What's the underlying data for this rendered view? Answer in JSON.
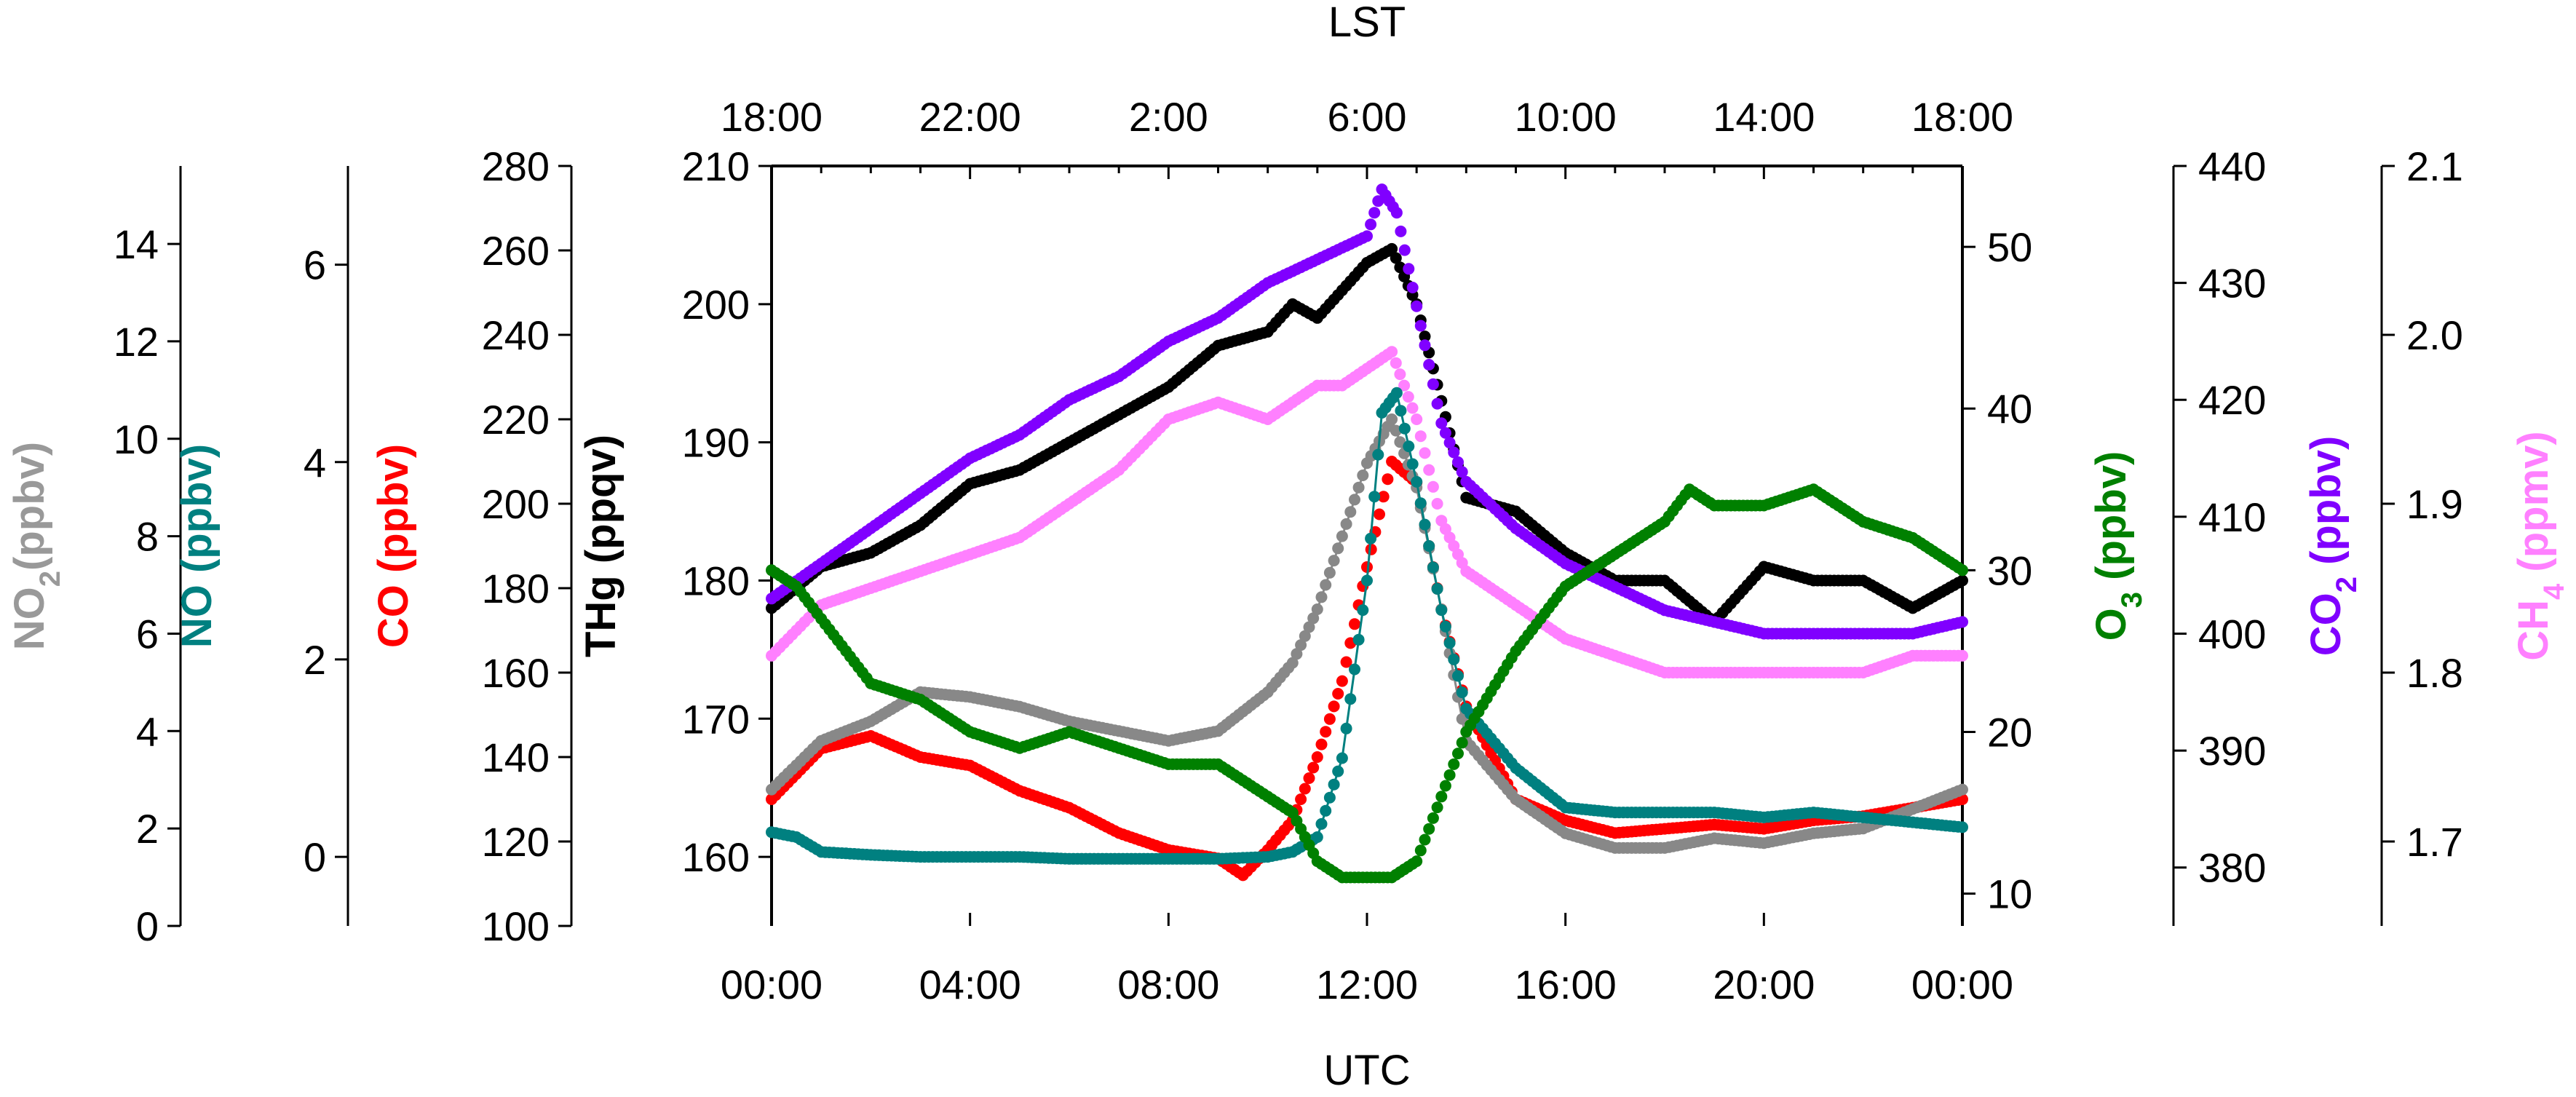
{
  "chart_data": {
    "type": "scatter",
    "title": "",
    "top_axis": {
      "label": "LST",
      "tick_labels": [
        "18:00",
        "22:00",
        "2:00",
        "6:00",
        "10:00",
        "14:00",
        "18:00"
      ]
    },
    "x_axis": {
      "label": "UTC",
      "tick_labels": [
        "00:00",
        "04:00",
        "08:00",
        "12:00",
        "16:00",
        "20:00",
        "00:00"
      ],
      "range_hours": [
        0,
        24
      ]
    },
    "axes": [
      {
        "id": "no2",
        "label_main": "NO",
        "label_sub": "2",
        "label_unit": "(ppbv)",
        "color": "#999999",
        "ylim": [
          0,
          15.6
        ],
        "ticks": [
          0,
          2,
          4,
          6,
          8,
          10,
          12,
          14
        ],
        "side": "left"
      },
      {
        "id": "no",
        "label_main": "NO (ppbv)",
        "label_sub": "",
        "label_unit": "",
        "color": "#008080",
        "ylim": [
          -0.7,
          7
        ],
        "ticks": [
          0,
          2,
          4,
          6
        ],
        "side": "left"
      },
      {
        "id": "co",
        "label_main": "CO (ppbv)",
        "label_sub": "",
        "label_unit": "",
        "color": "#ff0000",
        "ylim": [
          100,
          280
        ],
        "ticks": [
          100,
          120,
          140,
          160,
          180,
          200,
          220,
          240,
          260,
          280
        ],
        "side": "left"
      },
      {
        "id": "thg",
        "label_main": "THg (ppqv)",
        "label_sub": "",
        "label_unit": "",
        "color": "#000000",
        "ylim": [
          155,
          210
        ],
        "ticks": [
          160,
          170,
          180,
          190,
          200,
          210
        ],
        "side": "left"
      },
      {
        "id": "o3",
        "label_main": "O",
        "label_sub": "3",
        "label_unit": " (ppbv)",
        "color": "#008000",
        "ylim": [
          8,
          55
        ],
        "ticks": [
          10,
          20,
          30,
          40,
          50
        ],
        "side": "right"
      },
      {
        "id": "co2",
        "label_main": "CO",
        "label_sub": "2",
        "label_unit": " (ppbv)",
        "color": "#8000ff",
        "ylim": [
          375,
          440
        ],
        "ticks": [
          380,
          390,
          400,
          410,
          420,
          430,
          440
        ],
        "side": "right"
      },
      {
        "id": "ch4",
        "label_main": "CH",
        "label_sub": "4",
        "label_unit": " (ppmv)",
        "color": "#ff80ff",
        "ylim": [
          1.65,
          2.1
        ],
        "ticks": [
          "1.7",
          "1.8",
          "1.9",
          "2.0",
          "2.1"
        ],
        "side": "right"
      }
    ],
    "series": [
      {
        "axis": "thg",
        "color": "#000000",
        "connected": false,
        "x": [
          0,
          1,
          2,
          3,
          4,
          5,
          6,
          7,
          8,
          9,
          10,
          10.5,
          11,
          11.5,
          12,
          12.5,
          13,
          13.5,
          14,
          15,
          16,
          17,
          18,
          19,
          20,
          21,
          22,
          23,
          24
        ],
        "y": [
          178,
          181,
          182,
          184,
          187,
          188,
          190,
          192,
          194,
          197,
          198,
          200,
          199,
          201,
          203,
          204,
          200,
          193,
          186,
          185,
          182,
          180,
          180,
          177,
          181,
          180,
          180,
          178,
          180
        ]
      },
      {
        "axis": "co2",
        "color": "#8000ff",
        "connected": false,
        "x": [
          0,
          1,
          2,
          3,
          4,
          5,
          6,
          7,
          8,
          9,
          10,
          11,
          11.5,
          12,
          12.3,
          12.6,
          13,
          13.5,
          14,
          15,
          16,
          17,
          18,
          19,
          20,
          21,
          22,
          23,
          24
        ],
        "y": [
          403,
          406,
          409,
          412,
          415,
          417,
          420,
          422,
          425,
          427,
          430,
          432,
          433,
          434,
          438,
          436,
          428,
          418,
          413,
          409,
          406,
          404,
          402,
          401,
          400,
          400,
          400,
          400,
          401
        ]
      },
      {
        "axis": "ch4",
        "color": "#ff80ff",
        "connected": false,
        "x": [
          0,
          1,
          2,
          3,
          4,
          5,
          6,
          7,
          8,
          9,
          10,
          11,
          11.5,
          12,
          12.5,
          13,
          13.5,
          14,
          15,
          16,
          17,
          18,
          19,
          20,
          21,
          22,
          23,
          24
        ],
        "y": [
          1.81,
          1.84,
          1.85,
          1.86,
          1.87,
          1.88,
          1.9,
          1.92,
          1.95,
          1.96,
          1.95,
          1.97,
          1.97,
          1.98,
          1.99,
          1.95,
          1.89,
          1.86,
          1.84,
          1.82,
          1.81,
          1.8,
          1.8,
          1.8,
          1.8,
          1.8,
          1.81,
          1.81
        ]
      },
      {
        "axis": "co",
        "color": "#ff0000",
        "connected": false,
        "x": [
          0,
          1,
          2,
          3,
          4,
          5,
          6,
          7,
          8,
          9,
          9.5,
          10,
          10.5,
          11,
          11.5,
          12,
          12.5,
          13,
          13.5,
          14,
          15,
          16,
          17,
          18,
          19,
          20,
          21,
          22,
          23,
          24
        ],
        "y": [
          130,
          142,
          145,
          140,
          138,
          132,
          128,
          122,
          118,
          116,
          112,
          118,
          125,
          140,
          158,
          185,
          210,
          205,
          175,
          152,
          130,
          125,
          122,
          123,
          124,
          123,
          125,
          126,
          128,
          130
        ]
      },
      {
        "axis": "no2",
        "color": "#888888",
        "connected": true,
        "x": [
          0,
          1,
          2,
          3,
          4,
          5,
          6,
          7,
          8,
          9,
          10,
          10.5,
          11,
          11.5,
          12,
          12.5,
          13,
          13.5,
          14,
          15,
          16,
          17,
          18,
          19,
          20,
          21,
          22,
          23,
          24
        ],
        "y": [
          2.8,
          3.8,
          4.2,
          4.8,
          4.7,
          4.5,
          4.2,
          4.0,
          3.8,
          4.0,
          4.8,
          5.4,
          6.5,
          8.0,
          9.5,
          10.4,
          9.0,
          6.5,
          3.8,
          2.6,
          1.9,
          1.6,
          1.6,
          1.8,
          1.7,
          1.9,
          2.0,
          2.4,
          2.8
        ]
      },
      {
        "axis": "no",
        "color": "#008080",
        "connected": true,
        "x": [
          0,
          0.5,
          1,
          2,
          3,
          4,
          5,
          6,
          7,
          8,
          9,
          10,
          10.5,
          11,
          11.5,
          12,
          12.3,
          12.6,
          13,
          13.5,
          14,
          15,
          16,
          17,
          18,
          19,
          20,
          21,
          22,
          23,
          24
        ],
        "y": [
          0.25,
          0.2,
          0.05,
          0.02,
          0.0,
          0.0,
          0.0,
          -0.02,
          -0.02,
          -0.02,
          -0.02,
          0.0,
          0.05,
          0.2,
          1.0,
          2.8,
          4.5,
          4.7,
          3.8,
          2.5,
          1.5,
          0.9,
          0.5,
          0.45,
          0.45,
          0.45,
          0.4,
          0.45,
          0.4,
          0.35,
          0.3
        ]
      },
      {
        "axis": "o3",
        "color": "#008000",
        "connected": false,
        "x": [
          0,
          0.5,
          1,
          1.5,
          2,
          3,
          4,
          5,
          6,
          7,
          8,
          9,
          10,
          10.5,
          11,
          11.5,
          12,
          12.5,
          13,
          13.5,
          14,
          15,
          16,
          17,
          18,
          18.5,
          19,
          20,
          21,
          22,
          23,
          24
        ],
        "y": [
          30,
          29,
          27,
          25,
          23,
          22,
          20,
          19,
          20,
          19,
          18,
          18,
          16,
          15,
          12,
          11,
          11,
          11,
          12,
          16,
          20,
          25,
          29,
          31,
          33,
          35,
          34,
          34,
          35,
          33,
          32,
          30
        ]
      }
    ]
  }
}
